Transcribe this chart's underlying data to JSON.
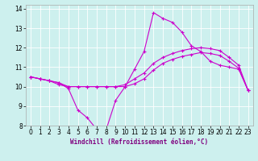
{
  "xlabel": "Windchill (Refroidissement éolien,°C)",
  "xlim": [
    -0.5,
    23.5
  ],
  "ylim": [
    8,
    14.2
  ],
  "xticks": [
    0,
    1,
    2,
    3,
    4,
    5,
    6,
    7,
    8,
    9,
    10,
    11,
    12,
    13,
    14,
    15,
    16,
    17,
    18,
    19,
    20,
    21,
    22,
    23
  ],
  "yticks": [
    8,
    9,
    10,
    11,
    12,
    13,
    14
  ],
  "bg_color": "#cdf0ee",
  "line_color": "#cc00cc",
  "line1_x": [
    0,
    1,
    2,
    3,
    4,
    5,
    6,
    7,
    8,
    9,
    10,
    11,
    12,
    13,
    14,
    15,
    16,
    17,
    18,
    19,
    20,
    21,
    22,
    23
  ],
  "line1_y": [
    10.5,
    10.4,
    10.3,
    10.2,
    9.9,
    8.8,
    8.4,
    7.8,
    7.8,
    9.3,
    10.0,
    10.9,
    11.8,
    13.8,
    13.5,
    13.3,
    12.8,
    12.1,
    11.8,
    11.3,
    11.1,
    11.0,
    10.9,
    9.8
  ],
  "line2_x": [
    0,
    1,
    2,
    3,
    4,
    5,
    6,
    7,
    8,
    9,
    10,
    11,
    12,
    13,
    14,
    15,
    16,
    17,
    18,
    19,
    20,
    21,
    22,
    23
  ],
  "line2_y": [
    10.5,
    10.4,
    10.3,
    10.2,
    10.0,
    10.0,
    10.0,
    10.0,
    10.0,
    10.0,
    10.1,
    10.4,
    10.7,
    11.2,
    11.5,
    11.7,
    11.85,
    11.95,
    12.0,
    11.95,
    11.85,
    11.5,
    11.1,
    9.8
  ],
  "line3_x": [
    0,
    1,
    2,
    3,
    4,
    5,
    6,
    7,
    8,
    9,
    10,
    11,
    12,
    13,
    14,
    15,
    16,
    17,
    18,
    19,
    20,
    21,
    22,
    23
  ],
  "line3_y": [
    10.5,
    10.4,
    10.3,
    10.1,
    10.0,
    10.0,
    10.0,
    10.0,
    10.0,
    10.0,
    10.0,
    10.15,
    10.4,
    10.85,
    11.2,
    11.4,
    11.55,
    11.65,
    11.75,
    11.7,
    11.6,
    11.3,
    10.95,
    9.8
  ],
  "tick_fontsize": 5.5,
  "xlabel_fontsize": 5.5
}
